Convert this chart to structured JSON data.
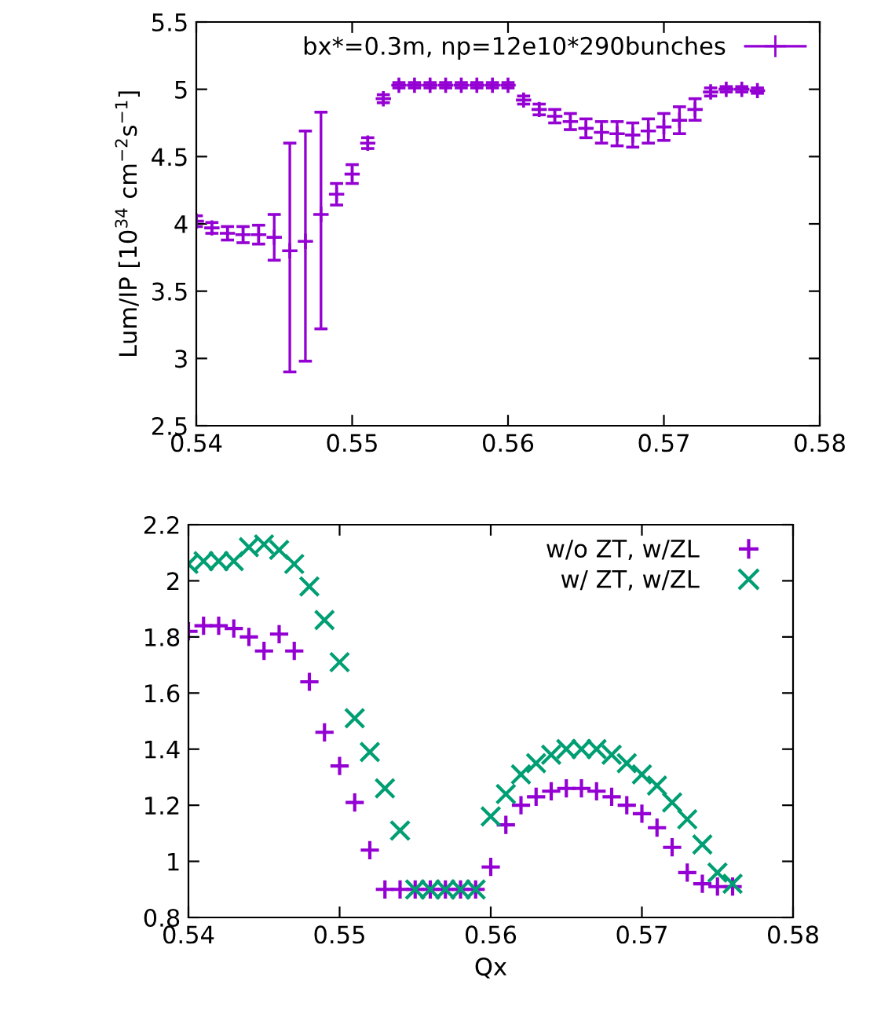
{
  "chart_data": [
    {
      "type": "scatter",
      "ylabel": "Lum/IP [10$^{34}$ cm$^{−2}$s$^{−1}$]",
      "xlim": [
        0.54,
        0.58
      ],
      "xticks": [
        0.54,
        0.55,
        0.56,
        0.57,
        0.58
      ],
      "ylim": [
        2.5,
        5.5
      ],
      "yticks": [
        2.5,
        3,
        3.5,
        4,
        4.5,
        5,
        5.5
      ],
      "legend": "top right",
      "marker": "cross",
      "grid": false,
      "x": [
        0.54,
        0.541,
        0.542,
        0.543,
        0.544,
        0.545,
        0.546,
        0.547,
        0.548,
        0.549,
        0.55,
        0.551,
        0.552,
        0.553,
        0.554,
        0.555,
        0.556,
        0.557,
        0.558,
        0.559,
        0.56,
        0.561,
        0.562,
        0.563,
        0.564,
        0.565,
        0.566,
        0.567,
        0.568,
        0.569,
        0.57,
        0.571,
        0.572,
        0.573,
        0.574,
        0.575,
        0.576
      ],
      "series": [
        {
          "name": "bx*=0.3m, np=12e10*290bunches",
          "color": "#9400d3",
          "values": [
            4.02,
            3.97,
            3.93,
            3.92,
            3.92,
            3.9,
            3.8,
            3.87,
            4.07,
            4.22,
            4.37,
            4.6,
            4.93,
            5.03,
            5.03,
            5.03,
            5.03,
            5.03,
            5.03,
            5.03,
            5.03,
            4.92,
            4.85,
            4.8,
            4.76,
            4.71,
            4.68,
            4.67,
            4.66,
            4.69,
            4.72,
            4.77,
            4.85,
            4.98,
            5.0,
            5.0,
            4.99
          ],
          "errors": [
            0.04,
            0.04,
            0.05,
            0.06,
            0.07,
            0.17,
            [
              2.9,
              4.6
            ],
            [
              2.98,
              4.69
            ],
            [
              3.22,
              4.83
            ],
            0.08,
            0.07,
            0.04,
            0.03,
            0.02,
            0.02,
            0.02,
            0.02,
            0.02,
            0.02,
            0.02,
            0.02,
            0.03,
            0.04,
            0.05,
            0.06,
            0.07,
            0.08,
            0.09,
            0.09,
            0.09,
            0.1,
            0.1,
            0.08,
            0.03,
            0.02,
            0.02,
            0.02
          ]
        }
      ]
    },
    {
      "type": "scatter",
      "xlabel": "Qx",
      "xlim": [
        0.54,
        0.58
      ],
      "xticks": [
        0.54,
        0.55,
        0.56,
        0.57,
        0.58
      ],
      "ylim": [
        0.8,
        2.2
      ],
      "yticks": [
        0.8,
        1,
        1.2,
        1.4,
        1.6,
        1.8,
        2,
        2.2
      ],
      "legend": "top right",
      "grid": false,
      "x": [
        0.54,
        0.541,
        0.542,
        0.543,
        0.544,
        0.545,
        0.546,
        0.547,
        0.548,
        0.549,
        0.55,
        0.551,
        0.552,
        0.553,
        0.554,
        0.555,
        0.556,
        0.557,
        0.558,
        0.559,
        0.56,
        0.561,
        0.562,
        0.563,
        0.564,
        0.565,
        0.566,
        0.567,
        0.568,
        0.569,
        0.57,
        0.571,
        0.572,
        0.573,
        0.574,
        0.575,
        0.576
      ],
      "series": [
        {
          "name": "w/o ZT, w/ZL",
          "color": "#9400d3",
          "marker": "cross",
          "values": [
            1.82,
            1.84,
            1.84,
            1.83,
            1.8,
            1.75,
            1.81,
            1.75,
            1.64,
            1.46,
            1.34,
            1.21,
            1.04,
            0.9,
            0.9,
            0.9,
            0.9,
            0.9,
            0.9,
            0.9,
            0.98,
            1.13,
            1.2,
            1.23,
            1.25,
            1.26,
            1.26,
            1.25,
            1.23,
            1.2,
            1.17,
            1.12,
            1.05,
            0.96,
            0.92,
            0.91,
            0.91
          ]
        },
        {
          "name": "w/ ZT, w/ZL",
          "color": "#009e73",
          "marker": "x",
          "values": [
            2.06,
            2.07,
            2.07,
            2.07,
            2.12,
            2.13,
            2.11,
            2.06,
            1.98,
            1.86,
            1.71,
            1.51,
            1.39,
            1.26,
            1.11,
            0.9,
            0.9,
            0.9,
            0.9,
            0.9,
            1.16,
            1.24,
            1.31,
            1.35,
            1.38,
            1.4,
            1.4,
            1.4,
            1.38,
            1.35,
            1.31,
            1.27,
            1.21,
            1.15,
            1.06,
            0.96,
            0.92
          ]
        }
      ]
    }
  ]
}
